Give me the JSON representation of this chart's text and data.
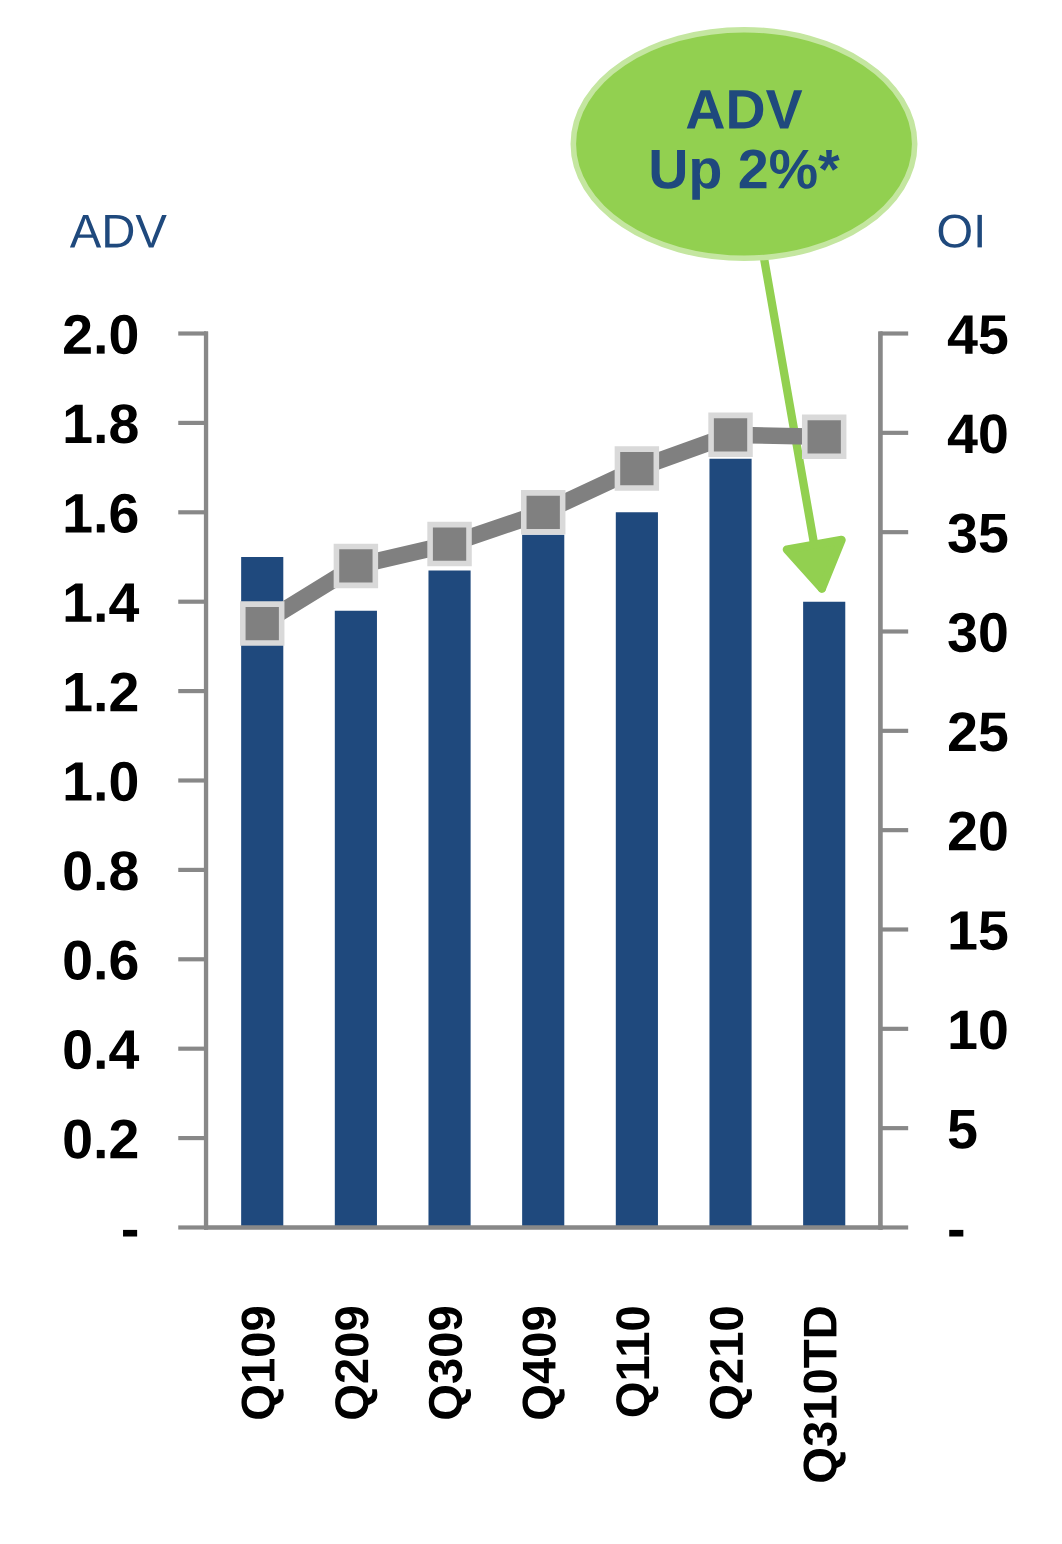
{
  "chart_data": {
    "type": "bar",
    "ylabel": "ADV",
    "y2label": "OI",
    "categories": [
      "Q109",
      "Q209",
      "Q309",
      "Q409",
      "Q110",
      "Q210",
      "Q310TD"
    ],
    "series": [
      {
        "color": "#1f497d",
        "values": [
          1.5,
          1.38,
          1.47,
          1.55,
          1.6,
          1.72,
          1.4
        ]
      },
      {
        "type": "line",
        "axis": "y2",
        "color": "#808080",
        "marker": "square",
        "values": [
          30.4,
          33.3,
          34.4,
          36.0,
          38.2,
          39.9,
          39.8
        ]
      }
    ],
    "ylim": [
      0,
      2.0
    ],
    "yticks": [
      {
        "value": 0,
        "label": "-"
      },
      0.2,
      0.4,
      0.6,
      0.8,
      {
        "value": 1,
        "label": "1.0"
      },
      1.2,
      1.4,
      1.6,
      1.8,
      {
        "value": 2,
        "label": "2.0"
      }
    ],
    "y2lim": [
      0,
      45
    ],
    "y2ticks": [
      {
        "value": 0,
        "label": "-"
      },
      5,
      10,
      15,
      20,
      25,
      30,
      35,
      40,
      45
    ],
    "annotations": [
      {
        "text": "ADV\nUp 2%*",
        "x": "Q310TD",
        "y": 1.4
      }
    ],
    "grid": false,
    "legend": false
  }
}
